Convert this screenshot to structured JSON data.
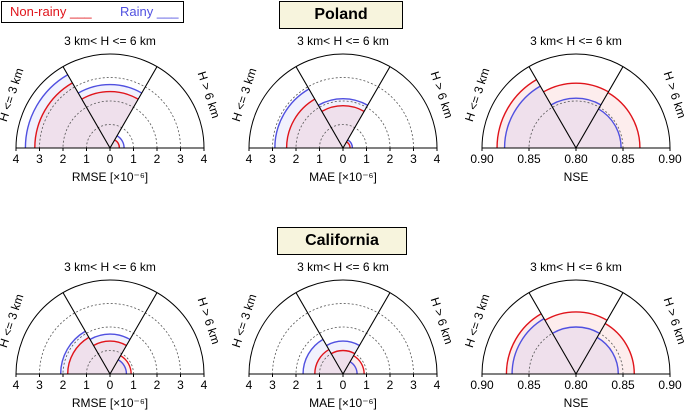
{
  "legend": {
    "nonrainy_label": "Non-rainy ___",
    "rainy_label": "Rainy ___",
    "nonrainy_color": "#e0141b",
    "rainy_color": "#5050e0"
  },
  "regions": [
    "Poland",
    "California"
  ],
  "sectors": {
    "left": "H <= 3 km",
    "middle": "3 km< H <= 6 km",
    "right": "H > 6 km"
  },
  "chart_data": [
    {
      "type": "polar-sector",
      "region": "Poland",
      "metric": "RMSE",
      "xlabel": "RMSE [×10⁻⁶]",
      "ticks": [
        "4",
        "3",
        "2",
        "1",
        "0",
        "1",
        "2",
        "3",
        "4"
      ],
      "rlim": [
        0,
        4
      ],
      "grid": true,
      "series": [
        {
          "name": "Non-rainy",
          "values": [
            3.2,
            2.4,
            0.4
          ]
        },
        {
          "name": "Rainy",
          "values": [
            3.6,
            2.7,
            0.6
          ]
        }
      ]
    },
    {
      "type": "polar-sector",
      "region": "Poland",
      "metric": "MAE",
      "xlabel": "MAE [×10⁻⁶]",
      "ticks": [
        "4",
        "3",
        "2",
        "1",
        "0",
        "1",
        "2",
        "3",
        "4"
      ],
      "rlim": [
        0,
        4
      ],
      "grid": true,
      "series": [
        {
          "name": "Non-rainy",
          "values": [
            2.4,
            1.8,
            0.3
          ]
        },
        {
          "name": "Rainy",
          "values": [
            2.9,
            2.1,
            0.4
          ]
        }
      ]
    },
    {
      "type": "polar-sector",
      "region": "Poland",
      "metric": "NSE",
      "xlabel": "NSE",
      "ticks": [
        "0.90",
        "0.85",
        "0.80",
        "0.85",
        "0.90"
      ],
      "rlim": [
        0.8,
        0.9
      ],
      "grid": true,
      "series": [
        {
          "name": "Non-rainy",
          "values": [
            0.884,
            0.869,
            0.868
          ]
        },
        {
          "name": "Rainy",
          "values": [
            0.876,
            0.853,
            0.848
          ]
        }
      ]
    },
    {
      "type": "polar-sector",
      "region": "California",
      "metric": "RMSE",
      "xlabel": "RMSE [×10⁻⁶]",
      "ticks": [
        "4",
        "3",
        "2",
        "1",
        "0",
        "1",
        "2",
        "3",
        "4"
      ],
      "rlim": [
        0,
        4
      ],
      "grid": true,
      "series": [
        {
          "name": "Non-rainy",
          "values": [
            1.8,
            1.4,
            0.9
          ]
        },
        {
          "name": "Rainy",
          "values": [
            2.1,
            1.7,
            0.7
          ]
        }
      ]
    },
    {
      "type": "polar-sector",
      "region": "California",
      "metric": "MAE",
      "xlabel": "MAE [×10⁻⁶]",
      "ticks": [
        "4",
        "3",
        "2",
        "1",
        "0",
        "1",
        "2",
        "3",
        "4"
      ],
      "rlim": [
        0,
        4
      ],
      "grid": true,
      "series": [
        {
          "name": "Non-rainy",
          "values": [
            1.2,
            1.0,
            0.9
          ]
        },
        {
          "name": "Rainy",
          "values": [
            1.7,
            1.4,
            0.6
          ]
        }
      ]
    },
    {
      "type": "polar-sector",
      "region": "California",
      "metric": "NSE",
      "xlabel": "NSE",
      "ticks": [
        "0.90",
        "0.85",
        "0.80",
        "0.85",
        "0.90"
      ],
      "rlim": [
        0.8,
        0.9
      ],
      "grid": true,
      "series": [
        {
          "name": "Non-rainy",
          "values": [
            0.874,
            0.866,
            0.862
          ]
        },
        {
          "name": "Rainy",
          "values": [
            0.868,
            0.85,
            0.845
          ]
        }
      ]
    }
  ]
}
